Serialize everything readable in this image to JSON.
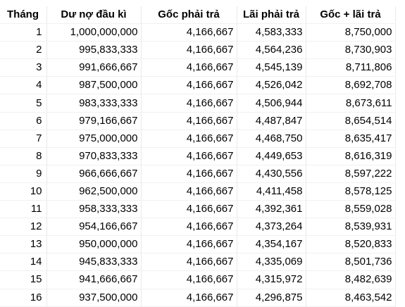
{
  "table": {
    "headers": [
      "Tháng",
      "Dư nợ đầu kì",
      "Gốc phải trả",
      "Lãi phải trả",
      "Gốc + lãi trả"
    ],
    "rows": [
      [
        "1",
        "1,000,000,000",
        "4,166,667",
        "4,583,333",
        "8,750,000"
      ],
      [
        "2",
        "995,833,333",
        "4,166,667",
        "4,564,236",
        "8,730,903"
      ],
      [
        "3",
        "991,666,667",
        "4,166,667",
        "4,545,139",
        "8,711,806"
      ],
      [
        "4",
        "987,500,000",
        "4,166,667",
        "4,526,042",
        "8,692,708"
      ],
      [
        "5",
        "983,333,333",
        "4,166,667",
        "4,506,944",
        "8,673,611"
      ],
      [
        "6",
        "979,166,667",
        "4,166,667",
        "4,487,847",
        "8,654,514"
      ],
      [
        "7",
        "975,000,000",
        "4,166,667",
        "4,468,750",
        "8,635,417"
      ],
      [
        "8",
        "970,833,333",
        "4,166,667",
        "4,449,653",
        "8,616,319"
      ],
      [
        "9",
        "966,666,667",
        "4,166,667",
        "4,430,556",
        "8,597,222"
      ],
      [
        "10",
        "962,500,000",
        "4,166,667",
        "4,411,458",
        "8,578,125"
      ],
      [
        "11",
        "958,333,333",
        "4,166,667",
        "4,392,361",
        "8,559,028"
      ],
      [
        "12",
        "954,166,667",
        "4,166,667",
        "4,373,264",
        "8,539,931"
      ],
      [
        "13",
        "950,000,000",
        "4,166,667",
        "4,354,167",
        "8,520,833"
      ],
      [
        "14",
        "945,833,333",
        "4,166,667",
        "4,335,069",
        "8,501,736"
      ],
      [
        "15",
        "941,666,667",
        "4,166,667",
        "4,315,972",
        "8,482,639"
      ],
      [
        "16",
        "937,500,000",
        "4,166,667",
        "4,296,875",
        "8,463,542"
      ]
    ]
  }
}
